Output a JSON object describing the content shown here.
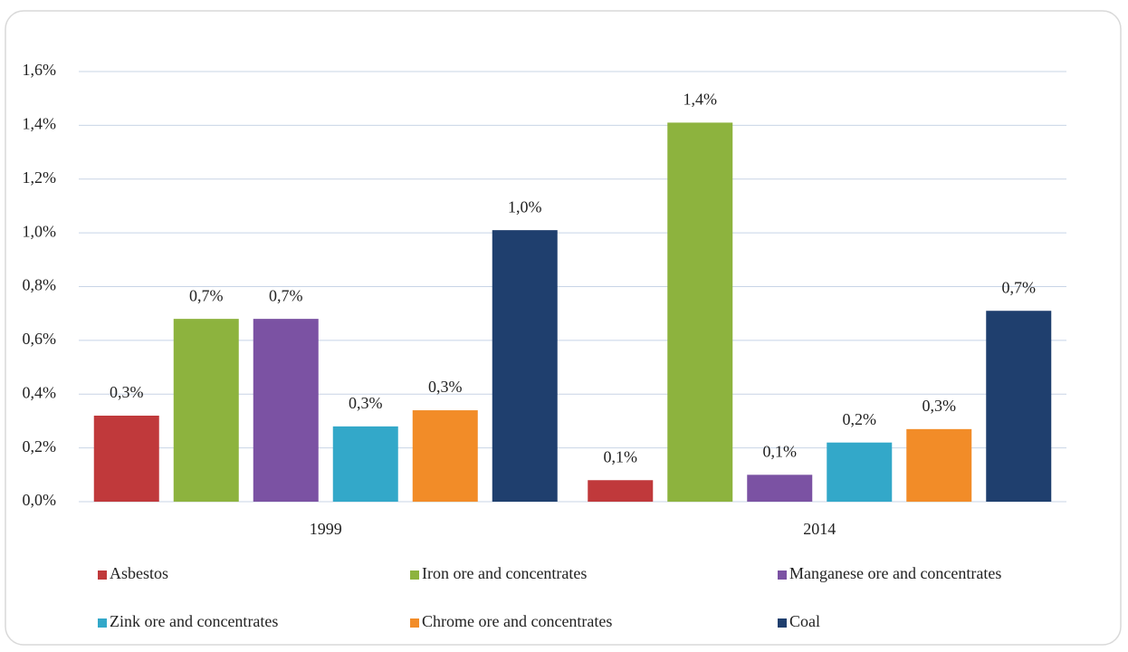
{
  "chart_data": {
    "type": "bar",
    "categories": [
      "1999",
      "2014"
    ],
    "series": [
      {
        "name": "Asbestos",
        "color": "#c0393b",
        "values": [
          0.32,
          0.08
        ],
        "value_labels": [
          "0,3%",
          "0,1%"
        ]
      },
      {
        "name": "Iron ore and concentrates",
        "color": "#8db33e",
        "values": [
          0.68,
          1.41
        ],
        "value_labels": [
          "0,7%",
          "1,4%"
        ]
      },
      {
        "name": "Manganese ore and concentrates",
        "color": "#7b52a3",
        "values": [
          0.68,
          0.1
        ],
        "value_labels": [
          "0,7%",
          "0,1%"
        ]
      },
      {
        "name": "Zink ore and concentrates",
        "color": "#33a8c9",
        "values": [
          0.28,
          0.22
        ],
        "value_labels": [
          "0,3%",
          "0,2%"
        ]
      },
      {
        "name": "Chrome ore and concentrates",
        "color": "#f28c28",
        "values": [
          0.34,
          0.27
        ],
        "value_labels": [
          "0,3%",
          "0,3%"
        ]
      },
      {
        "name": "Coal",
        "color": "#1f3f6e",
        "values": [
          1.01,
          0.71
        ],
        "value_labels": [
          "1,0%",
          "0,7%"
        ]
      }
    ],
    "ylim": [
      0,
      1.6
    ],
    "yticks": [
      {
        "value": 0,
        "label": "0,0%"
      },
      {
        "value": 0.2,
        "label": "0,2%"
      },
      {
        "value": 0.4,
        "label": "0,4%"
      },
      {
        "value": 0.6,
        "label": "0,6%"
      },
      {
        "value": 0.8,
        "label": "0,8%"
      },
      {
        "value": 1.0,
        "label": "1,0%"
      },
      {
        "value": 1.2,
        "label": "1,2%"
      },
      {
        "value": 1.4,
        "label": "1,4%"
      },
      {
        "value": 1.6,
        "label": "1,6%"
      }
    ],
    "grid": true,
    "legend": "bottom"
  }
}
